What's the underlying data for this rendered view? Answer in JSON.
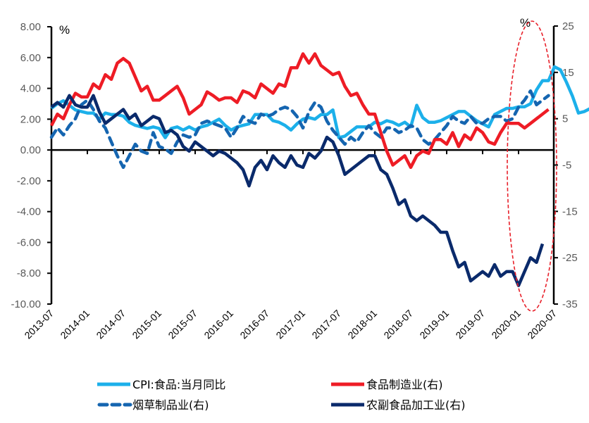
{
  "chart_data": {
    "type": "line",
    "title": "",
    "left_axis": {
      "unit": "%",
      "ylim": [
        -10,
        8
      ],
      "ticks": [
        8,
        6,
        4,
        2,
        0,
        -2,
        -4,
        -6,
        -8,
        -10
      ],
      "tick_labels": [
        "8.00",
        "6.00",
        "4.00",
        "2.00",
        "0.00",
        "-2.00",
        "-4.00",
        "-6.00",
        "-8.00",
        "-10.00"
      ]
    },
    "right_axis": {
      "unit": "%",
      "ylim": [
        -35,
        25
      ],
      "ticks": [
        25,
        15,
        5,
        -5,
        -15,
        -25,
        -35
      ],
      "tick_labels": [
        "25",
        "15",
        "5",
        "-5",
        "-15",
        "-25",
        "-35"
      ]
    },
    "x_start": "2013-07",
    "x_tick_labels": [
      "2013-07",
      "2014-01",
      "2014-07",
      "2015-01",
      "2015-07",
      "2016-01",
      "2016-07",
      "2017-01",
      "2017-07",
      "2018-01",
      "2018-07",
      "2019-01",
      "2019-07",
      "2020-01",
      "2020-07"
    ],
    "legend": {
      "placement": "bottom",
      "columns": 2
    },
    "annotation": {
      "type": "dashed-ellipse",
      "color": "#e8202a",
      "period": [
        "2019-12",
        "2020-06"
      ]
    },
    "series": [
      {
        "name": "CPI:食品:当月同比",
        "axis": "left",
        "color": "#1cb0ea",
        "style": "solid",
        "values": [
          2.7,
          3.0,
          3.2,
          2.9,
          2.6,
          2.5,
          2.4,
          2.4,
          2.0,
          2.4,
          2.3,
          2.3,
          2.2,
          1.8,
          1.6,
          1.5,
          1.4,
          1.5,
          1.4,
          0.8,
          1.4,
          1.5,
          1.3,
          1.5,
          1.3,
          1.5,
          1.6,
          1.8,
          2.0,
          1.6,
          1.3,
          1.5,
          1.6,
          1.7,
          2.3,
          2.3,
          2.3,
          1.9,
          1.8,
          1.6,
          1.3,
          1.7,
          2.0,
          2.1,
          2.0,
          2.3,
          2.3,
          2.6,
          0.8,
          0.9,
          1.2,
          1.5,
          1.5,
          1.5,
          1.8,
          1.7,
          1.9,
          1.8,
          1.6,
          1.8,
          1.5,
          2.9,
          2.1,
          1.8,
          1.8,
          1.9,
          2.1,
          2.3,
          2.5,
          2.5,
          2.2,
          1.9,
          1.7,
          1.5,
          2.3,
          2.5,
          2.7,
          2.7,
          2.8,
          2.8,
          3.0,
          3.9,
          4.5,
          4.5,
          5.4,
          5.2,
          4.4,
          3.5,
          2.4,
          2.5,
          2.7
        ]
      },
      {
        "name": "食品制造业(右)",
        "axis": "right",
        "color": "#ee1c25",
        "style": "solid",
        "values": [
          3.5,
          6.0,
          5.0,
          8.0,
          10.5,
          9.7,
          9.7,
          12.5,
          11.5,
          14.5,
          13.5,
          17.0,
          18.0,
          17.0,
          14.0,
          11.0,
          12.0,
          9.0,
          9.0,
          10.0,
          11.0,
          12.0,
          9.5,
          6.0,
          7.0,
          8.0,
          10.8,
          10.0,
          9.0,
          9.5,
          9.5,
          8.5,
          11.0,
          10.5,
          9.5,
          12.5,
          11.5,
          10.5,
          12.5,
          12.0,
          16.0,
          16.0,
          19.0,
          17.0,
          19.0,
          16.5,
          15.5,
          14.5,
          15.0,
          12.0,
          10.0,
          10.5,
          8.0,
          6.0,
          6.0,
          2.0,
          -2.0,
          -5.0,
          -4.0,
          -3.0,
          -5.5,
          -3.0,
          -2.0,
          -2.5,
          0.5,
          0.5,
          -0.5,
          2.0,
          -1.0,
          1.5,
          0.5,
          3.0,
          2.0,
          0.0,
          -0.5,
          2.0,
          4.0,
          4.0,
          4.0,
          3.0,
          4.0,
          5.0,
          6.0,
          7.0
        ]
      },
      {
        "name": "烟草制品业(右)",
        "axis": "right",
        "color": "#1565b0",
        "style": "dashed",
        "values": [
          1.0,
          3.0,
          1.5,
          3.5,
          5.0,
          8.0,
          9.0,
          7.0,
          4.5,
          3.0,
          0.0,
          -3.0,
          -5.5,
          -3.0,
          -0.5,
          -2.0,
          -2.5,
          2.0,
          -1.0,
          -1.5,
          -2.5,
          0.0,
          1.5,
          1.0,
          1.5,
          4.0,
          4.5,
          4.0,
          3.5,
          3.0,
          1.0,
          3.0,
          5.5,
          4.5,
          4.0,
          6.0,
          5.5,
          6.0,
          7.0,
          7.5,
          7.0,
          5.5,
          3.0,
          6.5,
          8.5,
          7.5,
          4.5,
          2.5,
          1.0,
          -0.5,
          1.0,
          0.0,
          2.0,
          3.5,
          2.0,
          1.0,
          3.0,
          3.0,
          2.0,
          2.5,
          3.5,
          3.0,
          0.5,
          -0.5,
          0.5,
          2.0,
          3.5,
          5.5,
          4.5,
          4.0,
          5.5,
          4.0,
          4.0,
          5.0,
          5.5,
          5.5,
          4.5,
          5.0,
          7.5,
          9.0,
          11.0,
          8.0,
          9.0,
          10.0
        ]
      },
      {
        "name": "农副食品加工业(右)",
        "axis": "right",
        "color": "#0a2a6b",
        "style": "solid",
        "values": [
          7.5,
          8.5,
          7.5,
          10.0,
          8.0,
          7.5,
          7.5,
          10.0,
          6.5,
          4.0,
          5.0,
          6.0,
          7.0,
          5.0,
          6.0,
          3.5,
          4.5,
          5.5,
          5.0,
          2.0,
          2.5,
          1.5,
          -1.0,
          -2.0,
          0.0,
          -1.0,
          -2.0,
          -3.0,
          -2.0,
          -2.5,
          -3.5,
          -4.5,
          -6.0,
          -9.5,
          -5.5,
          -4.0,
          -6.0,
          -3.0,
          -4.5,
          -5.5,
          -3.0,
          -5.0,
          -5.5,
          -2.5,
          -3.5,
          -2.0,
          1.0,
          0.0,
          -3.0,
          -7.0,
          -6.0,
          -5.0,
          -4.0,
          -3.0,
          -3.0,
          -6.0,
          -7.0,
          -10.0,
          -13.5,
          -12.5,
          -16.0,
          -17.0,
          -16.0,
          -17.0,
          -18.0,
          -19.5,
          -19.5,
          -23.5,
          -27.0,
          -26.0,
          -30.0,
          -29.0,
          -28.0,
          -29.0,
          -26.5,
          -29.0,
          -28.0,
          -28.0,
          -31.0,
          -28.0,
          -25.0,
          -26.0,
          -22.0
        ]
      }
    ]
  }
}
